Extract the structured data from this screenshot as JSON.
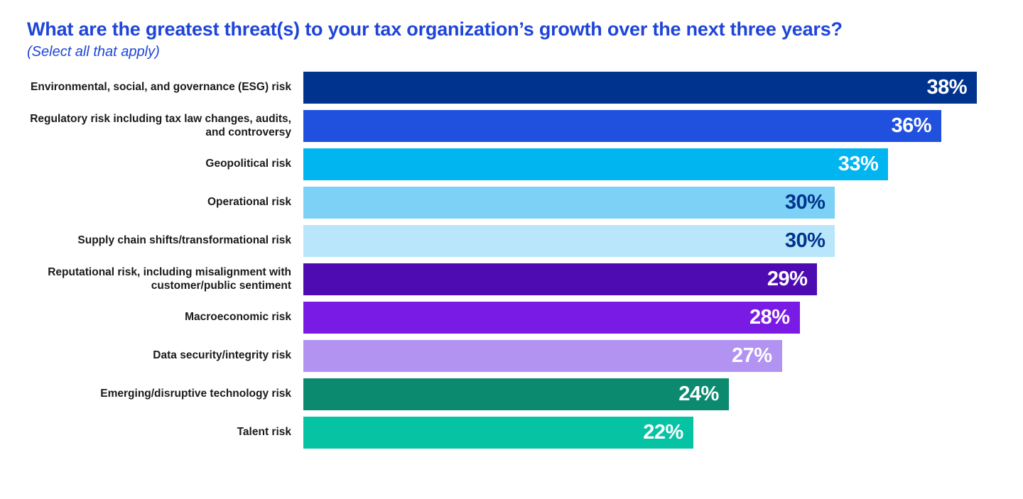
{
  "header": {
    "title": "What are the greatest threat(s) to your tax organization’s growth over the next three years?",
    "subtitle": "(Select all that apply)",
    "title_color": "#1E45D8"
  },
  "chart_data": {
    "type": "bar",
    "orientation": "horizontal",
    "xlim": [
      0,
      38
    ],
    "grid": false,
    "legend": "none",
    "categories": [
      "Environmental, social, and governance (ESG) risk",
      "Regulatory risk including tax law changes, audits, and controversy",
      "Geopolitical risk",
      "Operational risk",
      "Supply chain shifts/transformational risk",
      "Reputational risk, including misalignment with customer/public sentiment",
      "Macroeconomic risk",
      "Data security/integrity risk",
      "Emerging/disruptive technology risk",
      "Talent risk"
    ],
    "values": [
      38,
      36,
      33,
      30,
      30,
      29,
      28,
      27,
      24,
      22
    ],
    "items": [
      {
        "label": "Environmental, social, and governance (ESG) risk",
        "value": 38,
        "display": "38%",
        "bar_color": "#00338D",
        "value_color": "#FFFFFF"
      },
      {
        "label": "Regulatory risk including tax law changes, audits, and controversy",
        "value": 36,
        "display": "36%",
        "bar_color": "#2050DE",
        "value_color": "#FFFFFF"
      },
      {
        "label": "Geopolitical risk",
        "value": 33,
        "display": "33%",
        "bar_color": "#00B5F0",
        "value_color": "#FFFFFF"
      },
      {
        "label": "Operational risk",
        "value": 30,
        "display": "30%",
        "bar_color": "#7DD1F6",
        "value_color": "#00338D"
      },
      {
        "label": "Supply chain shifts/transformational risk",
        "value": 30,
        "display": "30%",
        "bar_color": "#BAE6FB",
        "value_color": "#00338D"
      },
      {
        "label": "Reputational risk, including misalignment with customer/public sentiment",
        "value": 29,
        "display": "29%",
        "bar_color": "#4E0BB2",
        "value_color": "#FFFFFF"
      },
      {
        "label": "Macroeconomic risk",
        "value": 28,
        "display": "28%",
        "bar_color": "#7A1BE5",
        "value_color": "#FFFFFF"
      },
      {
        "label": "Data security/integrity risk",
        "value": 27,
        "display": "27%",
        "bar_color": "#B293F2",
        "value_color": "#FFFFFF"
      },
      {
        "label": "Emerging/disruptive technology risk",
        "value": 24,
        "display": "24%",
        "bar_color": "#0B8A70",
        "value_color": "#FFFFFF"
      },
      {
        "label": "Talent risk",
        "value": 22,
        "display": "22%",
        "bar_color": "#06C3A4",
        "value_color": "#FFFFFF"
      }
    ]
  }
}
